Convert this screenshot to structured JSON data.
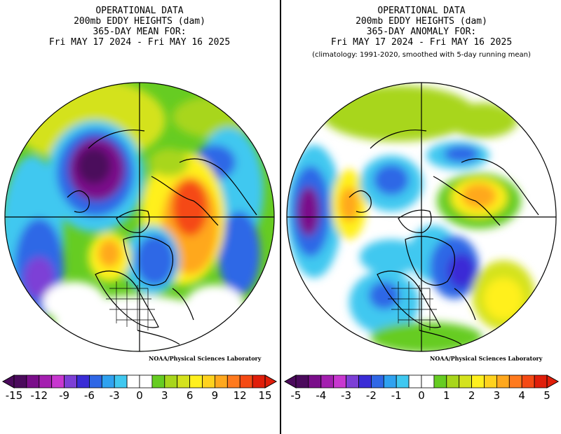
{
  "panels": [
    {
      "title_lines": [
        "OPERATIONAL DATA",
        "200mb EDDY HEIGHTS (dam)",
        "365-DAY MEAN FOR:",
        "Fri MAY 17 2024 - Fri MAY 16 2025"
      ],
      "subtitle": "",
      "credit": "NOAA/Physical Sciences Laboratory",
      "colorbar": {
        "ticks": [
          "-15",
          "-12",
          "-9",
          "-6",
          "-3",
          "0",
          "3",
          "6",
          "9",
          "12",
          "15"
        ],
        "units": "dam"
      }
    },
    {
      "title_lines": [
        "OPERATIONAL DATA",
        "200mb EDDY HEIGHTS (dam)",
        "365-DAY ANOMALY FOR:",
        "Fri MAY 17 2024 - Fri MAY 16 2025"
      ],
      "subtitle": "(climatology: 1991-2020, smoothed with 5-day running mean)",
      "credit": "NOAA/Physical Sciences Laboratory",
      "colorbar": {
        "ticks": [
          "-5",
          "-4",
          "-3",
          "-2",
          "-1",
          "0",
          "1",
          "2",
          "3",
          "4",
          "5"
        ],
        "units": "dam"
      }
    }
  ],
  "colors": {
    "palette": [
      "#4b0a5c",
      "#7a0e8a",
      "#a41fb0",
      "#c837d0",
      "#7d3fd6",
      "#3a2cd6",
      "#2f67e6",
      "#2fa2f0",
      "#40c8f0",
      "#ffffff",
      "#ffffff",
      "#66cc22",
      "#a8d61c",
      "#d4e21e",
      "#fff01e",
      "#ffd21e",
      "#ffa81e",
      "#ff7a1e",
      "#f54a14",
      "#e01e0a"
    ]
  }
}
